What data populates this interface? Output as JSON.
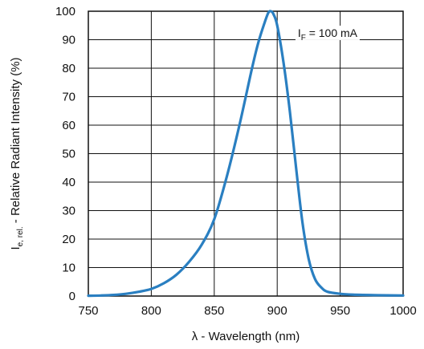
{
  "chart_data": {
    "type": "line",
    "xlabel": "λ - Wavelength (nm)",
    "ylabel_main": "I",
    "ylabel_sub": "e, rel.",
    "ylabel_rest": " - Relative Radiant Intensity (%)",
    "xlim": [
      750,
      1000
    ],
    "ylim": [
      0,
      100
    ],
    "xticks": [
      750,
      800,
      850,
      900,
      950,
      1000
    ],
    "yticks": [
      0,
      10,
      20,
      30,
      40,
      50,
      60,
      70,
      80,
      90,
      100
    ],
    "grid": true,
    "colors": {
      "line": "#2a7fc1",
      "axis": "#111111",
      "grid": "#111111"
    },
    "annotation": {
      "main": "I",
      "sub": "F",
      "rest": " = 100 mA",
      "x": 940,
      "y": 91
    },
    "series": [
      {
        "x": [
          750,
          760,
          770,
          780,
          790,
          800,
          810,
          820,
          830,
          840,
          850,
          860,
          870,
          880,
          885,
          890,
          893,
          895,
          897,
          900,
          905,
          910,
          915,
          920,
          925,
          930,
          935,
          940,
          950,
          960,
          980,
          1000
        ],
        "y": [
          0.1,
          0.2,
          0.4,
          0.8,
          1.5,
          2.5,
          4.5,
          7.5,
          12,
          18,
          27,
          42,
          60,
          80,
          89,
          96,
          99.5,
          100,
          99,
          95,
          82,
          65,
          45,
          26,
          13,
          6,
          3,
          1.5,
          0.8,
          0.5,
          0.3,
          0.2
        ]
      }
    ]
  }
}
